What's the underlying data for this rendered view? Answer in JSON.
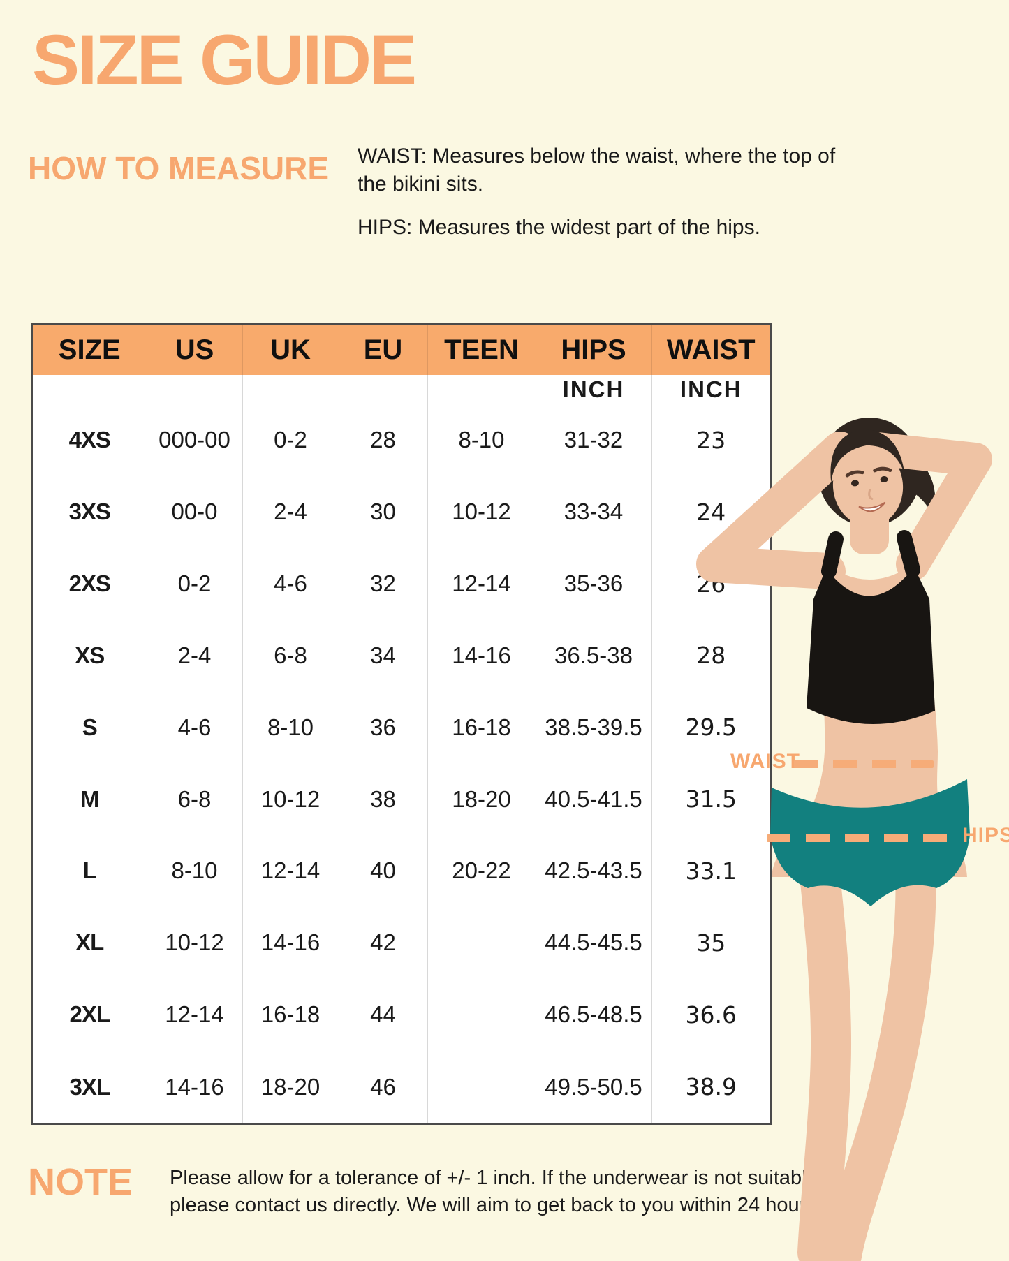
{
  "colors": {
    "background": "#FBF8E2",
    "accent_text": "#F7A76F",
    "header_bg": "#F8AA6C",
    "dash": "#F6AC78",
    "table_border": "#4A4A4A",
    "divider": "#D8D8D8",
    "unit_text": "#9B9B9B",
    "body_text": "#1A1A1A",
    "skin": "#EFC3A4",
    "hair": "#2F2620",
    "top": "#181512",
    "briefs": "#12807F"
  },
  "title": "SIZE GUIDE",
  "how_to_measure": {
    "heading": "HOW TO MEASURE",
    "waist_line": "WAIST: Measures below the waist, where the top of the bikini sits.",
    "hips_line": "HIPS: Measures the widest part of the hips."
  },
  "table": {
    "columns": [
      "SIZE",
      "US",
      "UK",
      "EU",
      "TEEN",
      "HIPS",
      "WAIST"
    ],
    "unit_label": "INCH",
    "rows": [
      {
        "size": "4XS",
        "us": "000-00",
        "uk": "0-2",
        "eu": "28",
        "teen": "8-10",
        "hips": "31-32",
        "waist": "23"
      },
      {
        "size": "3XS",
        "us": "00-0",
        "uk": "2-4",
        "eu": "30",
        "teen": "10-12",
        "hips": "33-34",
        "waist": "24"
      },
      {
        "size": "2XS",
        "us": "0-2",
        "uk": "4-6",
        "eu": "32",
        "teen": "12-14",
        "hips": "35-36",
        "waist": "26"
      },
      {
        "size": "XS",
        "us": "2-4",
        "uk": "6-8",
        "eu": "34",
        "teen": "14-16",
        "hips": "36.5-38",
        "waist": "28"
      },
      {
        "size": "S",
        "us": "4-6",
        "uk": "8-10",
        "eu": "36",
        "teen": "16-18",
        "hips": "38.5-39.5",
        "waist": "29.5"
      },
      {
        "size": "M",
        "us": "6-8",
        "uk": "10-12",
        "eu": "38",
        "teen": "18-20",
        "hips": "40.5-41.5",
        "waist": "31.5"
      },
      {
        "size": "L",
        "us": "8-10",
        "uk": "12-14",
        "eu": "40",
        "teen": "20-22",
        "hips": "42.5-43.5",
        "waist": "33.1"
      },
      {
        "size": "XL",
        "us": "10-12",
        "uk": "14-16",
        "eu": "42",
        "teen": "",
        "hips": "44.5-45.5",
        "waist": "35"
      },
      {
        "size": "2XL",
        "us": "12-14",
        "uk": "16-18",
        "eu": "44",
        "teen": "",
        "hips": "46.5-48.5",
        "waist": "36.6"
      },
      {
        "size": "3XL",
        "us": "14-16",
        "uk": "18-20",
        "eu": "46",
        "teen": "",
        "hips": "49.5-50.5",
        "waist": "38.9"
      }
    ]
  },
  "annotations": {
    "waist_label": "WAIST",
    "hips_label": "HIPS"
  },
  "note": {
    "label": "NOTE",
    "text": "Please allow for a tolerance of +/- 1 inch. If the underwear is not suitable, please contact us directly. We will aim to get back to you within 24 hours."
  }
}
